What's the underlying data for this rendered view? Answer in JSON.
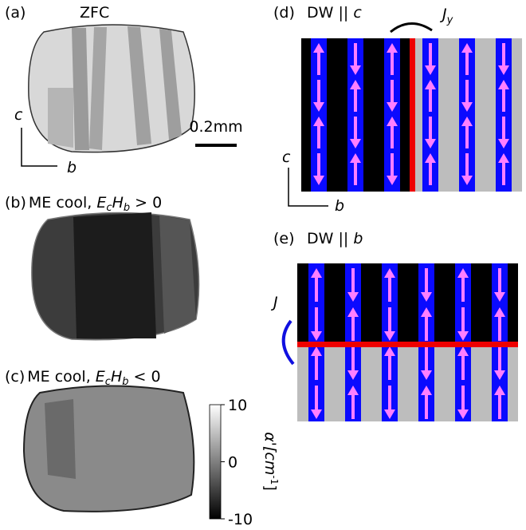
{
  "panel_a": {
    "letter": "(a)",
    "title": "ZFC",
    "axis_c": "c",
    "axis_b": "b",
    "scale_bar": "0.2mm"
  },
  "panel_b": {
    "letter": "(b)",
    "label": "ME cool, ",
    "e": "E",
    "e_sub": "c",
    "h": "H",
    "h_sub": "b",
    "relation": " > 0"
  },
  "panel_c": {
    "letter": "(c)",
    "label": "ME cool, ",
    "e": "E",
    "e_sub": "c",
    "h": "H",
    "h_sub": "b",
    "relation": " < 0"
  },
  "colorbar": {
    "label": "α'[cm",
    "label_exp": "-1",
    "label_end": "]",
    "lim": [
      -10,
      10
    ],
    "ticks": [
      10,
      0,
      -10
    ]
  },
  "panel_d": {
    "letter": "(d)",
    "title": "DW || ",
    "title_axis": "c",
    "current": "J",
    "current_sub": "y",
    "axis_c": "c",
    "axis_b": "b"
  },
  "panel_e": {
    "letter": "(e)",
    "title": "DW || ",
    "title_axis": "b",
    "current": "J"
  }
}
